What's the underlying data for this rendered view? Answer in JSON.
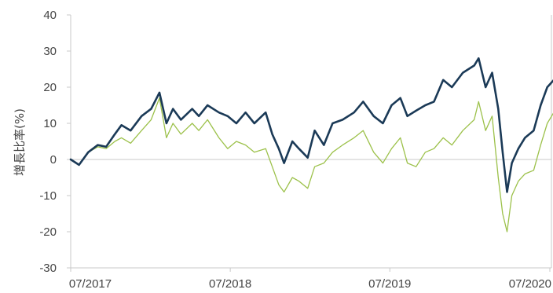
{
  "chart_data": {
    "type": "line",
    "title": "",
    "xlabel": "",
    "ylabel": "增長比率(%)",
    "ylim": [
      -30,
      40
    ],
    "y_ticks": [
      40,
      30,
      20,
      10,
      0,
      -10,
      -20,
      -30
    ],
    "x_tick_labels": [
      "07/2017",
      "07/2018",
      "07/2019",
      "07/2020"
    ],
    "x_range": [
      "2017-07",
      "2020-07"
    ],
    "grid": false,
    "legend": "none",
    "series": [
      {
        "color": "#1b3a57",
        "points": [
          [
            "2017-07-01",
            0
          ],
          [
            "2017-07-20",
            -1.5
          ],
          [
            "2017-08-10",
            2
          ],
          [
            "2017-09-01",
            4
          ],
          [
            "2017-09-20",
            3.5
          ],
          [
            "2017-10-10",
            7
          ],
          [
            "2017-10-25",
            9.5
          ],
          [
            "2017-11-15",
            8
          ],
          [
            "2017-12-10",
            12
          ],
          [
            "2018-01-01",
            14
          ],
          [
            "2018-01-20",
            18.5
          ],
          [
            "2018-02-05",
            10
          ],
          [
            "2018-02-20",
            14
          ],
          [
            "2018-03-10",
            11
          ],
          [
            "2018-04-05",
            14
          ],
          [
            "2018-04-20",
            12
          ],
          [
            "2018-05-10",
            15
          ],
          [
            "2018-06-05",
            13
          ],
          [
            "2018-06-25",
            12
          ],
          [
            "2018-07-15",
            10
          ],
          [
            "2018-08-05",
            13
          ],
          [
            "2018-08-25",
            10
          ],
          [
            "2018-09-20",
            13
          ],
          [
            "2018-10-05",
            7
          ],
          [
            "2018-10-20",
            3
          ],
          [
            "2018-11-01",
            -1
          ],
          [
            "2018-11-20",
            5
          ],
          [
            "2018-12-05",
            3
          ],
          [
            "2018-12-25",
            0.5
          ],
          [
            "2019-01-10",
            8
          ],
          [
            "2019-01-31",
            4
          ],
          [
            "2019-02-20",
            10
          ],
          [
            "2019-03-15",
            11
          ],
          [
            "2019-04-10",
            13
          ],
          [
            "2019-05-01",
            16
          ],
          [
            "2019-05-25",
            12
          ],
          [
            "2019-06-15",
            10
          ],
          [
            "2019-07-05",
            15
          ],
          [
            "2019-07-25",
            17
          ],
          [
            "2019-08-10",
            12
          ],
          [
            "2019-08-30",
            13.5
          ],
          [
            "2019-09-20",
            15
          ],
          [
            "2019-10-10",
            16
          ],
          [
            "2019-10-31",
            22
          ],
          [
            "2019-11-20",
            20
          ],
          [
            "2019-12-15",
            24
          ],
          [
            "2020-01-10",
            26
          ],
          [
            "2020-01-20",
            28
          ],
          [
            "2020-02-05",
            20
          ],
          [
            "2020-02-20",
            24
          ],
          [
            "2020-03-05",
            14
          ],
          [
            "2020-03-15",
            2
          ],
          [
            "2020-03-25",
            -9
          ],
          [
            "2020-04-05",
            -1
          ],
          [
            "2020-04-20",
            3
          ],
          [
            "2020-05-05",
            6
          ],
          [
            "2020-05-25",
            8
          ],
          [
            "2020-06-10",
            15
          ],
          [
            "2020-06-25",
            20
          ],
          [
            "2020-07-10",
            22
          ],
          [
            "2020-07-31",
            23
          ]
        ]
      },
      {
        "color": "#9cc14a",
        "points": [
          [
            "2017-07-01",
            0
          ],
          [
            "2017-07-20",
            -1.5
          ],
          [
            "2017-08-10",
            2
          ],
          [
            "2017-09-01",
            3.5
          ],
          [
            "2017-09-20",
            3
          ],
          [
            "2017-10-10",
            5
          ],
          [
            "2017-10-25",
            6
          ],
          [
            "2017-11-15",
            4.5
          ],
          [
            "2017-12-10",
            8
          ],
          [
            "2018-01-01",
            11
          ],
          [
            "2018-01-20",
            17
          ],
          [
            "2018-02-05",
            6
          ],
          [
            "2018-02-20",
            10
          ],
          [
            "2018-03-10",
            7
          ],
          [
            "2018-04-05",
            10
          ],
          [
            "2018-04-20",
            8
          ],
          [
            "2018-05-10",
            11
          ],
          [
            "2018-06-05",
            6
          ],
          [
            "2018-06-25",
            3
          ],
          [
            "2018-07-15",
            5
          ],
          [
            "2018-08-05",
            4
          ],
          [
            "2018-08-25",
            2
          ],
          [
            "2018-09-20",
            3
          ],
          [
            "2018-10-05",
            -2
          ],
          [
            "2018-10-20",
            -7
          ],
          [
            "2018-11-01",
            -9
          ],
          [
            "2018-11-20",
            -5
          ],
          [
            "2018-12-05",
            -6
          ],
          [
            "2018-12-25",
            -8
          ],
          [
            "2019-01-10",
            -2
          ],
          [
            "2019-01-31",
            -1
          ],
          [
            "2019-02-20",
            2
          ],
          [
            "2019-03-15",
            4
          ],
          [
            "2019-04-10",
            6
          ],
          [
            "2019-05-01",
            8
          ],
          [
            "2019-05-25",
            2
          ],
          [
            "2019-06-15",
            -1
          ],
          [
            "2019-07-05",
            3
          ],
          [
            "2019-07-25",
            6
          ],
          [
            "2019-08-10",
            -1
          ],
          [
            "2019-08-30",
            -2
          ],
          [
            "2019-09-20",
            2
          ],
          [
            "2019-10-10",
            3
          ],
          [
            "2019-10-31",
            6
          ],
          [
            "2019-11-20",
            4
          ],
          [
            "2019-12-15",
            8
          ],
          [
            "2020-01-10",
            11
          ],
          [
            "2020-01-20",
            16
          ],
          [
            "2020-02-05",
            8
          ],
          [
            "2020-02-20",
            12
          ],
          [
            "2020-03-05",
            -5
          ],
          [
            "2020-03-15",
            -15
          ],
          [
            "2020-03-25",
            -20
          ],
          [
            "2020-04-05",
            -10
          ],
          [
            "2020-04-20",
            -6
          ],
          [
            "2020-05-05",
            -4
          ],
          [
            "2020-05-25",
            -3
          ],
          [
            "2020-06-10",
            4
          ],
          [
            "2020-06-25",
            10
          ],
          [
            "2020-07-10",
            13
          ],
          [
            "2020-07-31",
            14
          ]
        ]
      }
    ]
  }
}
